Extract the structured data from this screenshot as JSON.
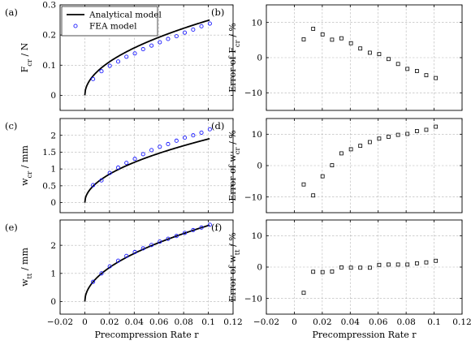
{
  "chart_data": [
    {
      "panel": "(a)",
      "type": "line",
      "ylabel": "F_cr / N",
      "xlabel": "",
      "xlim": [
        -0.02,
        0.12
      ],
      "ylim": [
        -0.05,
        0.3
      ],
      "x_ticks": [
        -0.02,
        0,
        0.02,
        0.04,
        0.06,
        0.08,
        0.1,
        0.12
      ],
      "y_ticks": [
        0,
        0.1,
        0.2,
        0.3
      ],
      "grid": true,
      "legend_position": "top-left",
      "series": [
        {
          "name": "Analytical model",
          "kind": "analytical",
          "x_range": [
            0,
            0.101
          ],
          "coef": 0.786,
          "power": 0.5,
          "color": "#000000"
        },
        {
          "name": "FEA model",
          "kind": "markers",
          "marker": "circle",
          "color": "#1a1aff",
          "x": [
            0.0067,
            0.0135,
            0.0202,
            0.027,
            0.0337,
            0.0405,
            0.0472,
            0.054,
            0.0607,
            0.0674,
            0.0742,
            0.0809,
            0.0877,
            0.0944,
            0.1012
          ],
          "y": [
            0.054,
            0.08,
            0.098,
            0.112,
            0.128,
            0.139,
            0.153,
            0.165,
            0.176,
            0.187,
            0.196,
            0.208,
            0.218,
            0.229,
            0.238
          ]
        }
      ]
    },
    {
      "panel": "(b)",
      "type": "scatter",
      "ylabel": "Error of F_cr / %",
      "xlabel": "",
      "xlim": [
        -0.02,
        0.12
      ],
      "ylim": [
        -15,
        15
      ],
      "x_ticks": [
        -0.02,
        0,
        0.02,
        0.04,
        0.06,
        0.08,
        0.1,
        0.12
      ],
      "y_ticks": [
        -10,
        0,
        10
      ],
      "grid": true,
      "series": [
        {
          "kind": "markers",
          "marker": "square",
          "color": "#000000",
          "x": [
            0.0067,
            0.0135,
            0.0202,
            0.027,
            0.0337,
            0.0405,
            0.0472,
            0.054,
            0.0607,
            0.0674,
            0.0742,
            0.0809,
            0.0877,
            0.0944,
            0.1012
          ],
          "y": [
            5.2,
            8.2,
            6.6,
            5.1,
            5.5,
            4.1,
            2.6,
            1.4,
            1.0,
            -0.4,
            -1.8,
            -3.2,
            -3.8,
            -5.0,
            -5.8
          ]
        }
      ]
    },
    {
      "panel": "(c)",
      "type": "line",
      "ylabel": "w_cr / mm",
      "xlabel": "",
      "xlim": [
        -0.02,
        0.12
      ],
      "ylim": [
        -0.3,
        2.5
      ],
      "x_ticks": [
        -0.02,
        0,
        0.02,
        0.04,
        0.06,
        0.08,
        0.1,
        0.12
      ],
      "y_ticks": [
        0,
        0.5,
        1,
        1.5,
        2
      ],
      "grid": true,
      "series": [
        {
          "kind": "analytical",
          "x_range": [
            0,
            0.101
          ],
          "coef": 5.98,
          "power": 0.5,
          "color": "#000000"
        },
        {
          "kind": "markers",
          "marker": "circle",
          "color": "#1a1aff",
          "x": [
            0.0067,
            0.0135,
            0.0202,
            0.027,
            0.0337,
            0.0405,
            0.0472,
            0.054,
            0.0607,
            0.0674,
            0.0742,
            0.0809,
            0.0877,
            0.0944,
            0.1012
          ],
          "y": [
            0.52,
            0.66,
            0.88,
            1.04,
            1.18,
            1.3,
            1.44,
            1.56,
            1.66,
            1.74,
            1.84,
            1.93,
            2.0,
            2.08,
            2.18
          ]
        }
      ]
    },
    {
      "panel": "(d)",
      "type": "scatter",
      "ylabel": "Error of w_cr / %",
      "xlabel": "",
      "xlim": [
        -0.02,
        0.12
      ],
      "ylim": [
        -15,
        15
      ],
      "x_ticks": [
        -0.02,
        0,
        0.02,
        0.04,
        0.06,
        0.08,
        0.1,
        0.12
      ],
      "y_ticks": [
        -10,
        0,
        10
      ],
      "grid": true,
      "series": [
        {
          "kind": "markers",
          "marker": "square",
          "color": "#000000",
          "x": [
            0.0067,
            0.0135,
            0.0202,
            0.027,
            0.0337,
            0.0405,
            0.0472,
            0.054,
            0.0607,
            0.0674,
            0.0742,
            0.0809,
            0.0877,
            0.0944,
            0.1012
          ],
          "y": [
            -6.0,
            -9.5,
            -3.4,
            0.1,
            3.9,
            5.2,
            6.3,
            7.5,
            8.6,
            9.2,
            9.8,
            10.1,
            11.0,
            11.4,
            12.4
          ]
        }
      ]
    },
    {
      "panel": "(e)",
      "type": "line",
      "ylabel": "w_tt / mm",
      "xlabel": "Precompression Rate r",
      "xlim": [
        -0.02,
        0.12
      ],
      "ylim": [
        -0.45,
        2.9
      ],
      "x_ticks": [
        -0.02,
        0,
        0.02,
        0.04,
        0.06,
        0.08,
        0.1,
        0.12
      ],
      "y_ticks": [
        0,
        1,
        2
      ],
      "grid": true,
      "series": [
        {
          "kind": "analytical",
          "x_range": [
            0,
            0.101
          ],
          "coef": 8.55,
          "power": 0.5,
          "color": "#000000"
        },
        {
          "kind": "markers",
          "marker": "circle",
          "color": "#1a1aff",
          "x": [
            0.0067,
            0.0135,
            0.0202,
            0.027,
            0.0337,
            0.0405,
            0.0472,
            0.054,
            0.0607,
            0.0674,
            0.0742,
            0.0809,
            0.0877,
            0.0944,
            0.1012
          ],
          "y": [
            0.7,
            1.0,
            1.25,
            1.45,
            1.62,
            1.76,
            1.89,
            2.01,
            2.13,
            2.23,
            2.33,
            2.44,
            2.54,
            2.63,
            2.73
          ]
        }
      ]
    },
    {
      "panel": "(f)",
      "type": "scatter",
      "ylabel": "Error of w_tt / %",
      "xlabel": "Precompression Rate r",
      "xlim": [
        -0.02,
        0.12
      ],
      "ylim": [
        -15,
        15
      ],
      "x_ticks": [
        -0.02,
        0,
        0.02,
        0.04,
        0.06,
        0.08,
        0.1,
        0.12
      ],
      "y_ticks": [
        -10,
        0,
        10
      ],
      "grid": true,
      "series": [
        {
          "kind": "markers",
          "marker": "square",
          "color": "#000000",
          "x": [
            0.0067,
            0.0135,
            0.0202,
            0.027,
            0.0337,
            0.0405,
            0.0472,
            0.054,
            0.0607,
            0.0674,
            0.0742,
            0.0809,
            0.0877,
            0.0944,
            0.1012
          ],
          "y": [
            -8.2,
            -1.5,
            -1.6,
            -1.4,
            -0.1,
            -0.2,
            -0.2,
            -0.2,
            0.7,
            0.8,
            0.8,
            0.8,
            1.2,
            1.5,
            2.0
          ]
        }
      ]
    }
  ]
}
